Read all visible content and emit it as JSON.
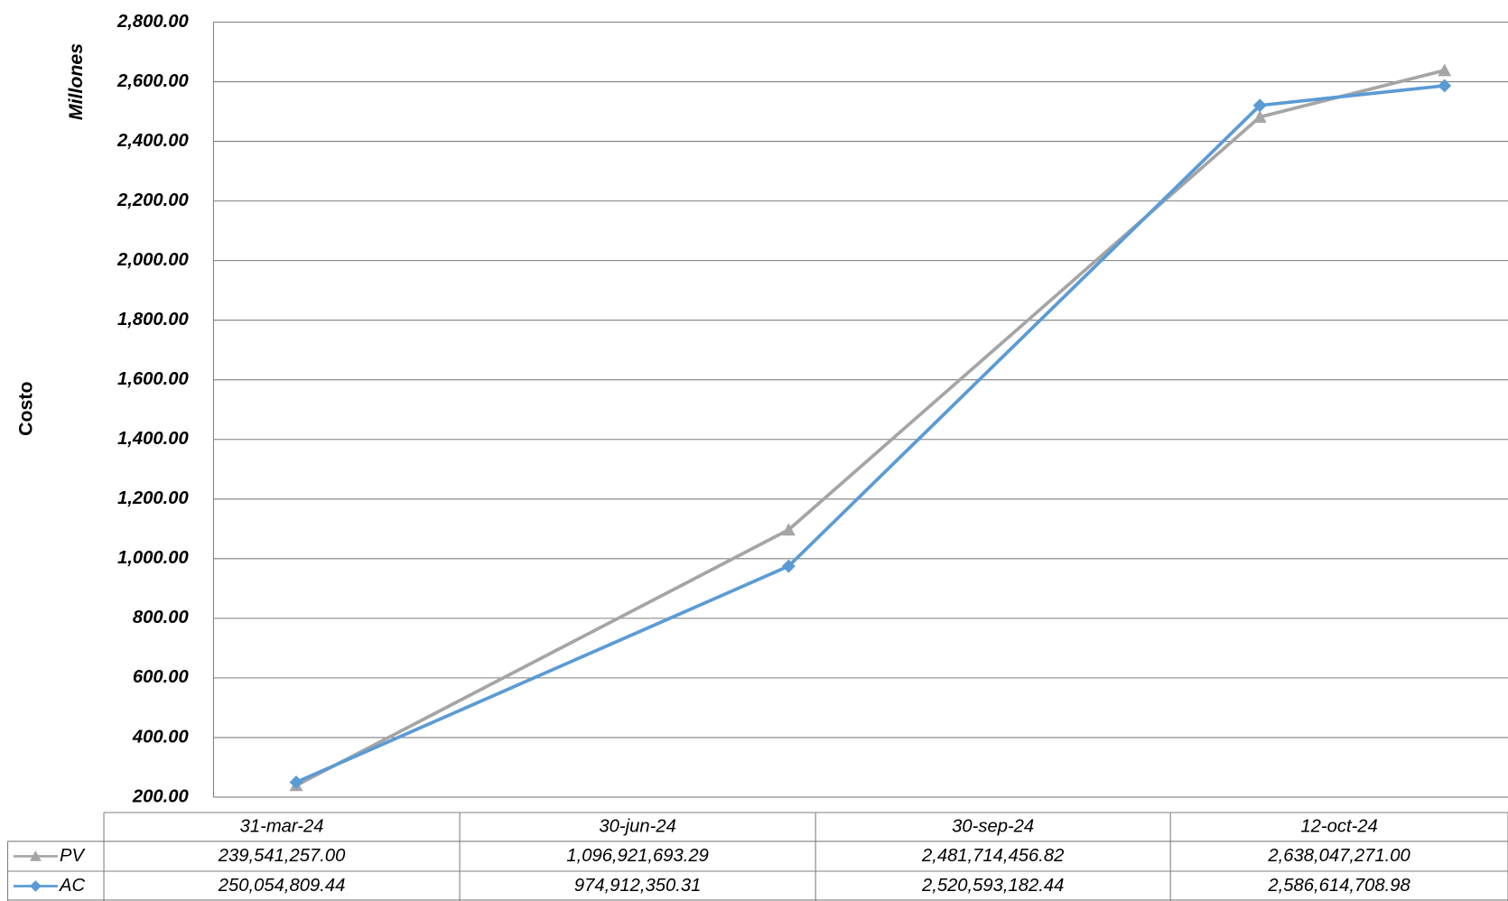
{
  "chart_data": {
    "type": "line",
    "y_label": "Costo",
    "y_unit_label": "Millones",
    "categories": [
      "31-mar-24",
      "30-jun-24",
      "30-sep-24",
      "12-oct-24"
    ],
    "series": [
      {
        "name": "PV",
        "color": "#a5a5a5",
        "marker": "triangle",
        "values": [
          239.541257,
          1096.92169329,
          2481.71445682,
          2638.047271
        ],
        "value_labels": [
          "239,541,257.00",
          "1,096,921,693.29",
          "2,481,714,456.82",
          "2,638,047,271.00"
        ]
      },
      {
        "name": "AC",
        "color": "#5b9bd5",
        "marker": "diamond",
        "values": [
          250.05480944,
          974.91235031,
          2520.59318244,
          2586.61470898
        ],
        "value_labels": [
          "250,054,809.44",
          "974,912,350.31",
          "2,520,593,182.44",
          "2,586,614,708.98"
        ]
      }
    ],
    "ylim": [
      200,
      2800
    ],
    "yticks": [
      {
        "value": 200,
        "label": "200.00"
      },
      {
        "value": 400,
        "label": "400.00"
      },
      {
        "value": 600,
        "label": "600.00"
      },
      {
        "value": 800,
        "label": "800.00"
      },
      {
        "value": 1000,
        "label": "1,000.00"
      },
      {
        "value": 1200,
        "label": "1,200.00"
      },
      {
        "value": 1400,
        "label": "1,400.00"
      },
      {
        "value": 1600,
        "label": "1,600.00"
      },
      {
        "value": 1800,
        "label": "1,800.00"
      },
      {
        "value": 2000,
        "label": "2,000.00"
      },
      {
        "value": 2200,
        "label": "2,200.00"
      },
      {
        "value": 2400,
        "label": "2,400.00"
      },
      {
        "value": 2600,
        "label": "2,600.00"
      },
      {
        "value": 2800,
        "label": "2,800.00"
      }
    ],
    "grid": true,
    "data_table": true
  }
}
